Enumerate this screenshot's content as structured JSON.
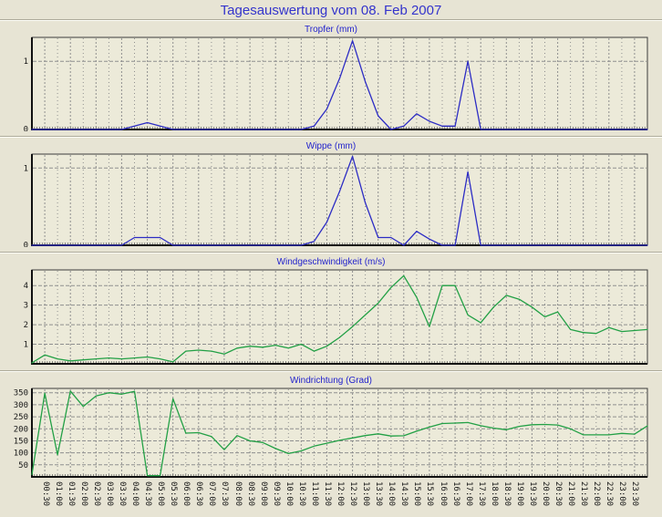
{
  "title": "Tagesauswertung vom 08. Feb 2007",
  "colors": {
    "page_bg": "#e7e4d4",
    "plot_bg": "#ecead9",
    "grid": "#8f8f8f",
    "axis": "#101010",
    "title_blue": "#3434cc",
    "chart_title_blue": "#2323cc",
    "line_blue": "#2c2cc4",
    "line_green": "#22a045",
    "tick_label": "#161616"
  },
  "x_axis": {
    "labels": [
      "00:30",
      "01:00",
      "01:30",
      "02:00",
      "02:30",
      "03:00",
      "03:30",
      "04:00",
      "04:30",
      "05:00",
      "05:30",
      "06:00",
      "06:30",
      "07:00",
      "07:30",
      "08:00",
      "08:30",
      "09:00",
      "09:30",
      "10:00",
      "10:30",
      "11:00",
      "11:30",
      "12:00",
      "12:30",
      "13:00",
      "13:30",
      "14:00",
      "14:30",
      "15:00",
      "15:30",
      "16:00",
      "16:30",
      "17:00",
      "17:30",
      "18:00",
      "18:30",
      "19:00",
      "19:30",
      "20:00",
      "20:30",
      "21:00",
      "21:30",
      "22:00",
      "22:30",
      "23:00",
      "23:30"
    ],
    "start_hour": 0,
    "end_hour": 24,
    "step_hours": 0.5
  },
  "chart_data": [
    {
      "id": "tropfer",
      "type": "line",
      "title": "Tropfer (mm)",
      "line_color": "#2c2cc4",
      "ylim": [
        0,
        1.35
      ],
      "yticks": [
        0,
        1
      ],
      "grid": true,
      "values": [
        0,
        0,
        0,
        0,
        0,
        0,
        0,
        0,
        0.05,
        0.1,
        0.05,
        0,
        0,
        0,
        0,
        0,
        0,
        0,
        0,
        0,
        0,
        0,
        0.05,
        0.3,
        0.75,
        1.3,
        0.7,
        0.2,
        0,
        0.05,
        0.23,
        0.12,
        0.05,
        0.05,
        1.0,
        0,
        0,
        0,
        0,
        0,
        0,
        0,
        0,
        0,
        0,
        0,
        0,
        0,
        0
      ]
    },
    {
      "id": "wippe",
      "type": "line",
      "title": "Wippe (mm)",
      "line_color": "#2c2cc4",
      "ylim": [
        0,
        1.18
      ],
      "yticks": [
        0,
        1
      ],
      "grid": true,
      "values": [
        0,
        0,
        0,
        0,
        0,
        0,
        0,
        0,
        0.1,
        0.1,
        0.1,
        0,
        0,
        0,
        0,
        0,
        0,
        0,
        0,
        0,
        0,
        0,
        0.05,
        0.3,
        0.7,
        1.15,
        0.55,
        0.1,
        0.1,
        0,
        0.18,
        0.08,
        0,
        0,
        0.95,
        0,
        0,
        0,
        0,
        0,
        0,
        0,
        0,
        0,
        0,
        0,
        0,
        0,
        0
      ]
    },
    {
      "id": "windgeschwindigkeit",
      "type": "line",
      "title": "Windgeschwindigkeit (m/s)",
      "line_color": "#22a045",
      "ylim": [
        0,
        4.8
      ],
      "yticks": [
        1,
        2,
        3,
        4
      ],
      "grid": true,
      "values": [
        0.05,
        0.45,
        0.25,
        0.15,
        0.2,
        0.25,
        0.3,
        0.25,
        0.3,
        0.35,
        0.25,
        0.1,
        0.65,
        0.7,
        0.65,
        0.5,
        0.8,
        0.9,
        0.85,
        0.95,
        0.8,
        1.0,
        0.65,
        0.9,
        1.35,
        1.9,
        2.5,
        3.1,
        3.9,
        4.5,
        3.4,
        1.9,
        4.0,
        4.0,
        2.5,
        2.1,
        2.9,
        3.5,
        3.3,
        2.9,
        2.4,
        2.65,
        1.75,
        1.6,
        1.55,
        1.85,
        1.65,
        1.7,
        1.75
      ]
    },
    {
      "id": "windrichtung",
      "type": "line",
      "title": "Windrichtung (Grad)",
      "line_color": "#22a045",
      "ylim": [
        0,
        368
      ],
      "yticks": [
        50,
        100,
        150,
        200,
        250,
        300,
        350
      ],
      "grid": true,
      "values": [
        10,
        348,
        92,
        357,
        293,
        337,
        350,
        344,
        356,
        5,
        5,
        325,
        182,
        184,
        168,
        113,
        172,
        150,
        143,
        118,
        97,
        108,
        128,
        140,
        152,
        162,
        172,
        179,
        170,
        171,
        190,
        207,
        222,
        224,
        226,
        213,
        203,
        196,
        210,
        217,
        218,
        216,
        200,
        175,
        175,
        175,
        181,
        178,
        212
      ]
    }
  ]
}
